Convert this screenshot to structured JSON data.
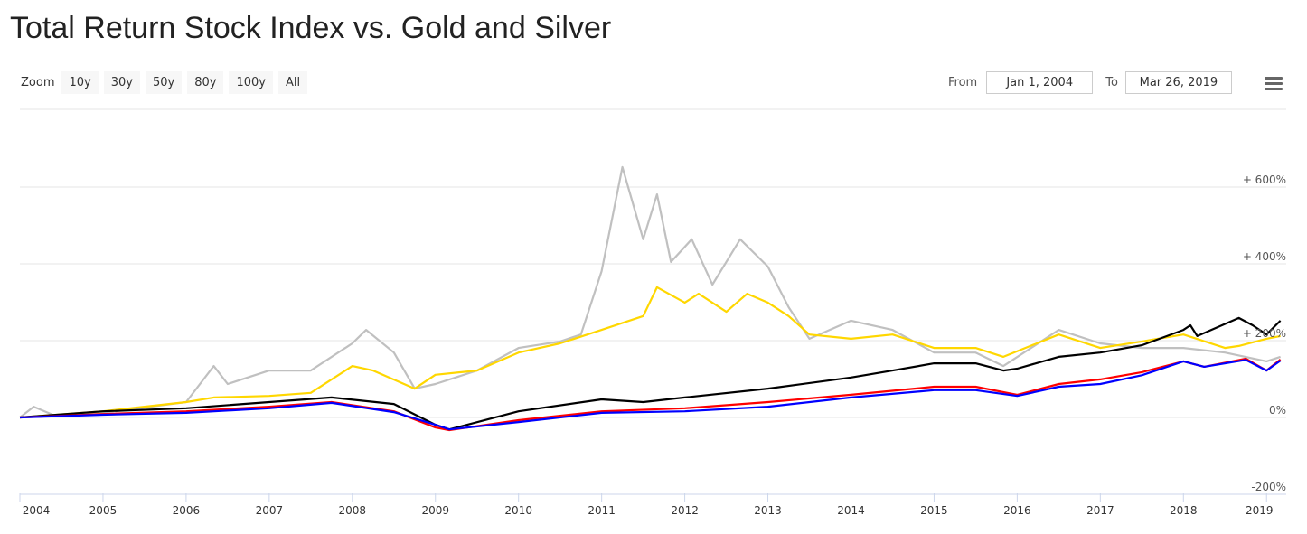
{
  "title": "Total Return Stock Index vs. Gold and Silver",
  "zoom": {
    "label": "Zoom",
    "buttons": [
      "10y",
      "30y",
      "50y",
      "80y",
      "100y",
      "All"
    ]
  },
  "range": {
    "from_label": "From",
    "from": "Jan 1, 2004",
    "to_label": "To",
    "to": "Mar 26, 2019"
  },
  "menu_icon": "hamburger-menu-icon",
  "chart_data": {
    "type": "line",
    "title": "Total Return Stock Index vs. Gold and Silver",
    "x_ticks": [
      "2004",
      "2005",
      "2006",
      "2007",
      "2008",
      "2009",
      "2010",
      "2011",
      "2012",
      "2013",
      "2014",
      "2015",
      "2016",
      "2017",
      "2018",
      "2019"
    ],
    "y_ticks": [
      "-200%",
      "0%",
      "+ 200%",
      "+ 400%",
      "+ 600%"
    ],
    "y_tick_values": [
      -200,
      0,
      200,
      400,
      600
    ],
    "xlim": [
      "2004-01",
      "2019-03"
    ],
    "ylim": [
      -200,
      800
    ],
    "grid": true,
    "series": [
      {
        "color": "#c0c0c0",
        "points": [
          [
            "2004-01",
            0
          ],
          [
            "2004-03",
            28
          ],
          [
            "2004-06",
            5
          ],
          [
            "2005-01",
            12
          ],
          [
            "2006-01",
            40
          ],
          [
            "2006-05",
            134
          ],
          [
            "2006-07",
            87
          ],
          [
            "2007-01",
            122
          ],
          [
            "2007-07",
            122
          ],
          [
            "2008-01",
            193
          ],
          [
            "2008-03",
            228
          ],
          [
            "2008-07",
            169
          ],
          [
            "2008-10",
            75
          ],
          [
            "2009-01",
            87
          ],
          [
            "2009-07",
            122
          ],
          [
            "2010-01",
            181
          ],
          [
            "2010-07",
            198
          ],
          [
            "2010-10",
            216
          ],
          [
            "2011-01",
            381
          ],
          [
            "2011-04",
            652
          ],
          [
            "2011-07",
            464
          ],
          [
            "2011-09",
            581
          ],
          [
            "2011-11",
            405
          ],
          [
            "2012-02",
            464
          ],
          [
            "2012-05",
            346
          ],
          [
            "2012-09",
            464
          ],
          [
            "2013-01",
            393
          ],
          [
            "2013-04",
            287
          ],
          [
            "2013-07",
            205
          ],
          [
            "2014-01",
            252
          ],
          [
            "2014-07",
            228
          ],
          [
            "2015-01",
            169
          ],
          [
            "2015-07",
            169
          ],
          [
            "2015-11",
            134
          ],
          [
            "2016-07",
            228
          ],
          [
            "2017-01",
            193
          ],
          [
            "2017-07",
            181
          ],
          [
            "2018-01",
            181
          ],
          [
            "2018-07",
            169
          ],
          [
            "2019-01",
            146
          ],
          [
            "2019-03",
            158
          ]
        ]
      },
      {
        "color": "#ffd700",
        "points": [
          [
            "2004-01",
            0
          ],
          [
            "2005-01",
            16
          ],
          [
            "2006-01",
            40
          ],
          [
            "2006-05",
            52
          ],
          [
            "2007-01",
            56
          ],
          [
            "2007-07",
            64
          ],
          [
            "2008-01",
            134
          ],
          [
            "2008-04",
            122
          ],
          [
            "2008-10",
            75
          ],
          [
            "2009-01",
            111
          ],
          [
            "2009-07",
            122
          ],
          [
            "2010-01",
            169
          ],
          [
            "2010-07",
            193
          ],
          [
            "2011-01",
            228
          ],
          [
            "2011-07",
            264
          ],
          [
            "2011-09",
            339
          ],
          [
            "2012-01",
            299
          ],
          [
            "2012-03",
            322
          ],
          [
            "2012-07",
            275
          ],
          [
            "2012-10",
            322
          ],
          [
            "2013-01",
            299
          ],
          [
            "2013-04",
            264
          ],
          [
            "2013-07",
            216
          ],
          [
            "2014-01",
            205
          ],
          [
            "2014-07",
            216
          ],
          [
            "2015-01",
            181
          ],
          [
            "2015-07",
            181
          ],
          [
            "2015-11",
            158
          ],
          [
            "2016-07",
            216
          ],
          [
            "2017-01",
            181
          ],
          [
            "2017-07",
            198
          ],
          [
            "2018-01",
            216
          ],
          [
            "2018-07",
            181
          ],
          [
            "2018-09",
            186
          ],
          [
            "2019-01",
            205
          ],
          [
            "2019-03",
            212
          ]
        ]
      },
      {
        "color": "#000000",
        "points": [
          [
            "2004-01",
            0
          ],
          [
            "2005-01",
            16
          ],
          [
            "2006-01",
            24
          ],
          [
            "2007-01",
            40
          ],
          [
            "2007-10",
            52
          ],
          [
            "2008-07",
            35
          ],
          [
            "2009-01",
            -19
          ],
          [
            "2009-03",
            -31
          ],
          [
            "2010-01",
            16
          ],
          [
            "2011-01",
            47
          ],
          [
            "2011-07",
            40
          ],
          [
            "2012-01",
            52
          ],
          [
            "2013-01",
            75
          ],
          [
            "2014-01",
            104
          ],
          [
            "2014-07",
            122
          ],
          [
            "2015-01",
            141
          ],
          [
            "2015-07",
            141
          ],
          [
            "2015-11",
            122
          ],
          [
            "2016-01",
            127
          ],
          [
            "2016-07",
            158
          ],
          [
            "2017-01",
            169
          ],
          [
            "2017-07",
            188
          ],
          [
            "2018-01",
            228
          ],
          [
            "2018-02",
            240
          ],
          [
            "2018-03",
            212
          ],
          [
            "2018-09",
            259
          ],
          [
            "2018-11",
            240
          ],
          [
            "2019-01",
            216
          ],
          [
            "2019-03",
            252
          ]
        ]
      },
      {
        "color": "#ff0000",
        "points": [
          [
            "2004-01",
            0
          ],
          [
            "2005-01",
            9
          ],
          [
            "2006-01",
            16
          ],
          [
            "2007-01",
            28
          ],
          [
            "2007-10",
            40
          ],
          [
            "2008-07",
            16
          ],
          [
            "2009-01",
            -26
          ],
          [
            "2009-03",
            -33
          ],
          [
            "2010-01",
            -7
          ],
          [
            "2011-01",
            16
          ],
          [
            "2012-01",
            24
          ],
          [
            "2013-01",
            40
          ],
          [
            "2014-01",
            59
          ],
          [
            "2015-01",
            80
          ],
          [
            "2015-07",
            80
          ],
          [
            "2016-01",
            59
          ],
          [
            "2016-07",
            87
          ],
          [
            "2017-01",
            99
          ],
          [
            "2017-07",
            118
          ],
          [
            "2018-01",
            146
          ],
          [
            "2018-04",
            132
          ],
          [
            "2018-10",
            153
          ],
          [
            "2019-01",
            122
          ],
          [
            "2019-03",
            151
          ]
        ]
      },
      {
        "color": "#0000ff",
        "points": [
          [
            "2004-01",
            0
          ],
          [
            "2005-01",
            7
          ],
          [
            "2006-01",
            12
          ],
          [
            "2007-01",
            24
          ],
          [
            "2007-10",
            38
          ],
          [
            "2008-07",
            14
          ],
          [
            "2009-01",
            -19
          ],
          [
            "2009-03",
            -31
          ],
          [
            "2010-01",
            -12
          ],
          [
            "2011-01",
            12
          ],
          [
            "2012-01",
            16
          ],
          [
            "2013-01",
            28
          ],
          [
            "2014-01",
            52
          ],
          [
            "2015-01",
            71
          ],
          [
            "2015-07",
            71
          ],
          [
            "2016-01",
            56
          ],
          [
            "2016-07",
            80
          ],
          [
            "2017-01",
            87
          ],
          [
            "2017-07",
            110
          ],
          [
            "2018-01",
            146
          ],
          [
            "2018-04",
            132
          ],
          [
            "2018-10",
            150
          ],
          [
            "2019-01",
            122
          ],
          [
            "2019-03",
            148
          ]
        ]
      }
    ]
  }
}
